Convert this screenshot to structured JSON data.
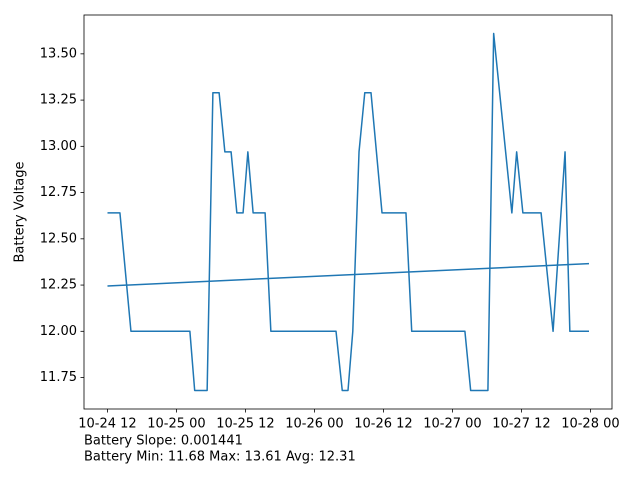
{
  "chart_data": {
    "type": "line",
    "ylabel": "Battery Voltage",
    "ylabel_color": "#1f77b4",
    "xlim": [
      "10-24 07:55",
      "10-28 03:45"
    ],
    "ylim": [
      11.58,
      13.71
    ],
    "xticks": [
      "10-24 12",
      "10-25 00",
      "10-25 12",
      "10-26 00",
      "10-26 12",
      "10-27 00",
      "10-27 12",
      "10-28 00"
    ],
    "yticks": [
      11.75,
      {
        "value": 12,
        "label": "12.00"
      },
      12.25,
      {
        "value": 12.5,
        "label": "12.50"
      },
      12.75,
      {
        "value": 13,
        "label": "13.00"
      },
      13.25,
      {
        "value": 13.5,
        "label": "13.50"
      }
    ],
    "grid": false,
    "series": [
      {
        "color": "#1f77b4",
        "x": [
          "10-24 12:00",
          "10-24 14:10",
          "10-24 16:05",
          "10-25 02:20",
          "10-25 03:10",
          "10-25 05:20",
          "10-25 06:20",
          "10-25 07:25",
          "10-25 08:25",
          "10-25 09:30",
          "10-25 10:30",
          "10-25 11:35",
          "10-25 12:25",
          "10-25 13:20",
          "10-25 15:25",
          "10-25 16:25",
          "10-26 03:45",
          "10-26 04:50",
          "10-26 05:50",
          "10-26 06:40",
          "10-26 07:45",
          "10-26 08:45",
          "10-26 09:50",
          "10-26 11:45",
          "10-26 15:55",
          "10-26 16:55",
          "10-27 02:10",
          "10-27 03:10",
          "10-27 06:10",
          "10-27 07:10",
          "10-27 09:15",
          "10-27 10:20",
          "10-27 11:10",
          "10-27 12:15",
          "10-27 15:25",
          "10-27 17:30",
          "10-27 19:35",
          "10-27 20:25",
          "10-27 23:45"
        ],
        "values": [
          12.64,
          12.64,
          12.0,
          12.0,
          11.68,
          11.68,
          13.29,
          13.29,
          12.97,
          12.97,
          12.64,
          12.64,
          12.97,
          12.64,
          12.64,
          12.0,
          12.0,
          11.68,
          11.68,
          12.0,
          12.97,
          13.29,
          13.29,
          12.64,
          12.64,
          12.0,
          12.0,
          11.68,
          11.68,
          13.61,
          12.97,
          12.64,
          12.97,
          12.64,
          12.64,
          12.0,
          12.97,
          12.0,
          12.0
        ]
      },
      {
        "color": "#1f77b4",
        "x": [
          "10-24 12:00",
          "10-27 23:45"
        ],
        "values": [
          12.245,
          12.366
        ]
      }
    ],
    "annotations": [
      "Battery Slope: 0.001441",
      "Battery Min: 11.68 Max: 13.61 Avg: 12.31"
    ]
  }
}
